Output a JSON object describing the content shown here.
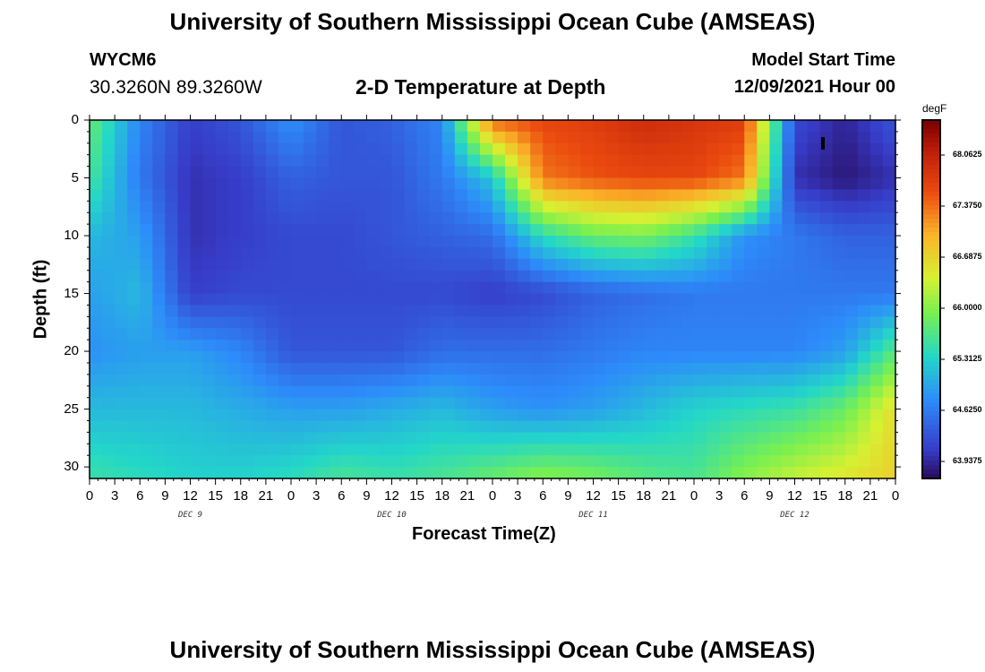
{
  "title": "University of Southern Mississippi Ocean Cube (AMSEAS)",
  "title_repeat": "University of Southern Mississippi Ocean Cube (AMSEAS)",
  "station": {
    "id": "WYCM6",
    "coords": "30.3260N  89.3260W"
  },
  "model_start": {
    "label": "Model Start Time",
    "value": "12/09/2021 Hour 00"
  },
  "chart_data": {
    "type": "heatmap",
    "title": "2-D Temperature at Depth",
    "xlabel": "Forecast Time(Z)",
    "ylabel": "Depth (ft)",
    "x_tick_labels": [
      "0",
      "3",
      "6",
      "9",
      "12",
      "15",
      "18",
      "21",
      "0",
      "3",
      "6",
      "9",
      "12",
      "15",
      "18",
      "21",
      "0",
      "3",
      "6",
      "9",
      "12",
      "15",
      "18",
      "21",
      "0",
      "3",
      "6",
      "9",
      "12",
      "15",
      "18",
      "21",
      "0"
    ],
    "day_labels": [
      "DEC 9",
      "DEC 10",
      "DEC 11",
      "DEC 12"
    ],
    "x_range_hours": [
      0,
      96
    ],
    "y_tick_labels": [
      "0",
      "5",
      "10",
      "15",
      "20",
      "25",
      "30"
    ],
    "y_range_ft": [
      0,
      31
    ],
    "colorbar": {
      "unit": "degF",
      "labels": [
        "68.0625",
        "67.3750",
        "66.6875",
        "66.0000",
        "65.3125",
        "64.6250",
        "63.9375"
      ],
      "range": [
        63.6,
        68.4
      ]
    },
    "approx_values_degF": {
      "depths_ft": [
        0,
        5,
        10,
        15,
        20,
        25,
        31
      ],
      "times_h": [
        0,
        6,
        12,
        18,
        24,
        30,
        36,
        42,
        48,
        54,
        60,
        66,
        72,
        78,
        84,
        90,
        96
      ],
      "rows": [
        [
          65.7,
          64.6,
          64.0,
          64.2,
          64.7,
          64.2,
          64.3,
          64.6,
          67.3,
          67.5,
          67.6,
          67.8,
          67.7,
          67.6,
          64.1,
          63.8,
          64.2
        ],
        [
          65.5,
          64.5,
          63.9,
          64.0,
          64.3,
          64.2,
          64.2,
          64.5,
          65.1,
          67.2,
          67.4,
          67.5,
          67.5,
          67.2,
          63.9,
          63.7,
          63.9
        ],
        [
          65.0,
          64.8,
          63.9,
          64.0,
          64.1,
          64.1,
          64.2,
          64.3,
          64.4,
          65.3,
          65.7,
          65.8,
          65.4,
          64.7,
          64.5,
          64.3,
          64.3
        ],
        [
          64.8,
          65.0,
          64.0,
          64.1,
          64.1,
          64.1,
          64.1,
          64.1,
          64.0,
          64.1,
          64.3,
          64.4,
          64.5,
          64.5,
          64.5,
          64.5,
          64.5
        ],
        [
          64.7,
          64.8,
          64.8,
          64.6,
          64.2,
          64.2,
          64.2,
          64.4,
          64.4,
          64.4,
          64.5,
          64.6,
          64.6,
          64.6,
          64.6,
          64.8,
          65.6
        ],
        [
          65.0,
          65.0,
          65.0,
          64.9,
          64.8,
          64.8,
          64.9,
          65.0,
          64.8,
          64.7,
          64.8,
          65.0,
          65.2,
          65.3,
          65.4,
          65.7,
          66.5
        ],
        [
          65.4,
          65.3,
          65.2,
          65.2,
          65.3,
          65.5,
          65.4,
          65.5,
          65.7,
          65.9,
          65.8,
          65.6,
          65.5,
          65.9,
          66.2,
          66.4,
          66.6
        ]
      ]
    }
  }
}
